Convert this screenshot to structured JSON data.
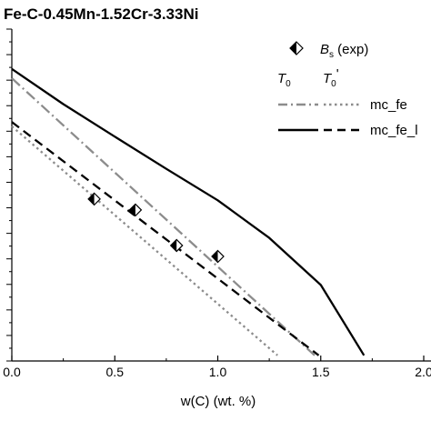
{
  "chart_data": {
    "type": "line",
    "title": "Fe-C-0.45Mn-1.52Cr-3.33Ni",
    "xlabel": "w(C) (wt. %)",
    "ylabel": "",
    "xlim": [
      0,
      2.0
    ],
    "x_tick_labels": [
      "0.0",
      "0.5",
      "1.0",
      "1.5",
      "2.0"
    ],
    "y_tick_labels": [],
    "legend_position": "top-right",
    "legend": {
      "bs_label": "B",
      "bs_sub": "s",
      "bs_suffix": " (exp)",
      "t0_label": "T",
      "t0_sub": "0",
      "t0p_label": "T",
      "t0p_sub": "0",
      "t0p_prime": "'",
      "row1_label": "mc_fe",
      "row2_label": "mc_fe_l"
    },
    "series": [
      {
        "name": "mc_fe",
        "group": "T0",
        "style": "dash-dot",
        "color": "#8c8c8c",
        "x": [
          0.0,
          1.47
        ],
        "y": [
          0.852,
          0.017
        ]
      },
      {
        "name": "mc_fe",
        "group": "T0'",
        "style": "dotted",
        "color": "#8c8c8c",
        "x": [
          0.0,
          1.29
        ],
        "y": [
          0.707,
          0.017
        ]
      },
      {
        "name": "mc_fe_l",
        "group": "T0",
        "style": "solid",
        "color": "#000000",
        "x": [
          0.0,
          0.25,
          0.5,
          0.75,
          1.0,
          1.25,
          1.5,
          1.71
        ],
        "y": [
          0.88,
          0.774,
          0.676,
          0.579,
          0.484,
          0.371,
          0.229,
          0.017
        ]
      },
      {
        "name": "mc_fe_l",
        "group": "T0'",
        "style": "dashed",
        "color": "#000000",
        "x": [
          0.0,
          1.49
        ],
        "y": [
          0.72,
          0.017
        ]
      },
      {
        "name": "B_s (exp)",
        "type": "scatter",
        "marker": "half-filled diamond",
        "x": [
          0.4,
          0.6,
          0.8,
          1.0
        ],
        "y": [
          0.488,
          0.455,
          0.348,
          0.315
        ]
      }
    ]
  }
}
